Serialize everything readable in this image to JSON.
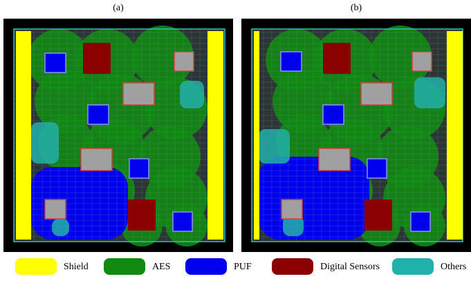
{
  "panels": [
    {
      "label": "(a)"
    },
    {
      "label": "(b)"
    }
  ],
  "legend": [
    {
      "label": "Shield",
      "color": "#ffff00"
    },
    {
      "label": "AES",
      "color": "#118a11"
    },
    {
      "label": "PUF",
      "color": "#0000ee"
    },
    {
      "label": "Digital Sensors",
      "color": "#8b0000"
    },
    {
      "label": "Others",
      "color": "#20b2aa"
    }
  ]
}
